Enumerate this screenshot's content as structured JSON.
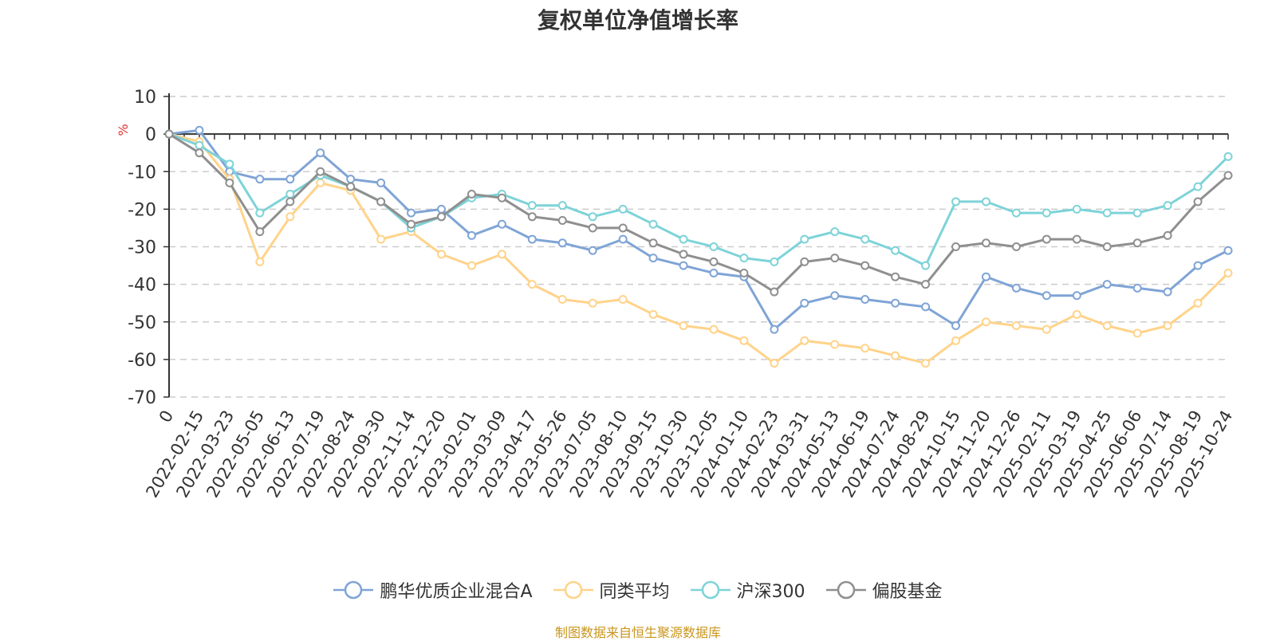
{
  "source_note": "制图数据来自恒生聚源数据库",
  "chart_data": {
    "type": "line",
    "title": "复权单位净值增长率",
    "ylabel": "%",
    "xlabel": "",
    "ylim": [
      -70,
      10
    ],
    "yticks": [
      10,
      0,
      -10,
      -20,
      -30,
      -40,
      -50,
      -60,
      -70
    ],
    "grid": true,
    "legend_position": "bottom",
    "categories": [
      "0",
      "2022-02-15",
      "2022-03-23",
      "2022-05-05",
      "2022-06-13",
      "2022-07-19",
      "2022-08-24",
      "2022-09-30",
      "2022-11-14",
      "2022-12-20",
      "2023-02-01",
      "2023-03-09",
      "2023-04-17",
      "2023-05-26",
      "2023-07-05",
      "2023-08-10",
      "2023-09-15",
      "2023-10-30",
      "2023-12-05",
      "2024-01-10",
      "2024-02-23",
      "2024-03-31",
      "2024-05-13",
      "2024-06-19",
      "2024-07-24",
      "2024-08-29",
      "2024-10-15",
      "2024-11-20",
      "2024-12-26",
      "2025-02-11",
      "2025-03-19",
      "2025-04-25",
      "2025-06-06",
      "2025-07-14",
      "2025-08-19",
      "2025-10-24"
    ],
    "series": [
      {
        "name": "鹏华优质企业混合A",
        "color": "#7fa4d6",
        "values": [
          0,
          1,
          -10,
          -12,
          -12,
          -5,
          -12,
          -13,
          -21,
          -20,
          -27,
          -24,
          -28,
          -29,
          -31,
          -28,
          -33,
          -35,
          -37,
          -38,
          -52,
          -45,
          -43,
          -44,
          -45,
          -46,
          -51,
          -38,
          -41,
          -43,
          -43,
          -40,
          -41,
          -42,
          -35,
          -31
        ]
      },
      {
        "name": "同类平均",
        "color": "#ffd38a",
        "values": [
          0,
          -2,
          -12,
          -34,
          -22,
          -13,
          -15,
          -28,
          -26,
          -32,
          -35,
          -32,
          -40,
          -44,
          -45,
          -44,
          -48,
          -51,
          -52,
          -55,
          -61,
          -55,
          -56,
          -57,
          -59,
          -61,
          -55,
          -50,
          -51,
          -52,
          -48,
          -51,
          -53,
          -51,
          -45,
          -37
        ]
      },
      {
        "name": "沪深300",
        "color": "#7dd3d8",
        "values": [
          0,
          -3,
          -8,
          -21,
          -16,
          -11,
          -14,
          -18,
          -25,
          -22,
          -17,
          -16,
          -19,
          -19,
          -22,
          -20,
          -24,
          -28,
          -30,
          -33,
          -34,
          -28,
          -26,
          -28,
          -31,
          -35,
          -18,
          -18,
          -21,
          -21,
          -20,
          -21,
          -21,
          -19,
          -14,
          -6
        ]
      },
      {
        "name": "偏股基金",
        "color": "#8f8f8f",
        "values": [
          0,
          -5,
          -13,
          -26,
          -18,
          -10,
          -14,
          -18,
          -24,
          -22,
          -16,
          -17,
          -22,
          -23,
          -25,
          -25,
          -29,
          -32,
          -34,
          -37,
          -42,
          -34,
          -33,
          -35,
          -38,
          -40,
          -30,
          -29,
          -30,
          -28,
          -28,
          -30,
          -29,
          -27,
          -18,
          -11
        ]
      }
    ]
  }
}
